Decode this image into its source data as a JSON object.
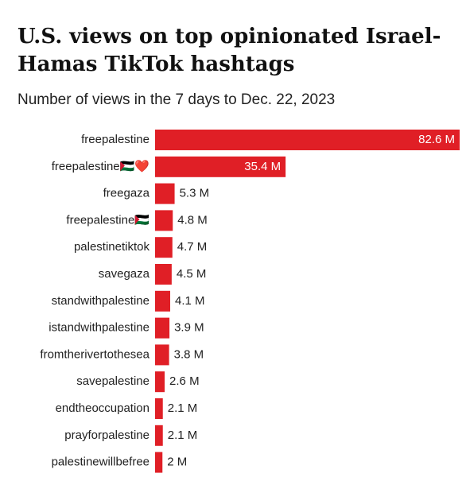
{
  "chart_data": {
    "type": "hbar",
    "title": [
      "U.S. views on top opinionated Israel-",
      "Hamas TikTok hashtags"
    ],
    "subtitle": "Number of views in the 7 days to Dec. 22, 2023",
    "categories": [
      "freepalestine",
      "freepalestine🇵🇸❤️",
      "freegaza",
      "freepalestine🇵🇸",
      "palestinetiktok",
      "savegaza",
      "standwithpalestine",
      "istandwithpalestine",
      "fromtherivertothesea",
      "savepalestine",
      "endtheoccupation",
      "prayforpalestine",
      "palestinewillbefree"
    ],
    "values": [
      82.6,
      35.4,
      5.3,
      4.8,
      4.7,
      4.5,
      4.1,
      3.9,
      3.8,
      2.6,
      2.1,
      2.1,
      2
    ],
    "value_labels": [
      "82.6 M",
      "35.4 M",
      "5.3 M",
      "4.8 M",
      "4.7 M",
      "4.5 M",
      "4.1 M",
      "3.9 M",
      "3.8 M",
      "2.6 M",
      "2.1 M",
      "2.1 M",
      "2 M"
    ],
    "color": "#e01f26"
  }
}
